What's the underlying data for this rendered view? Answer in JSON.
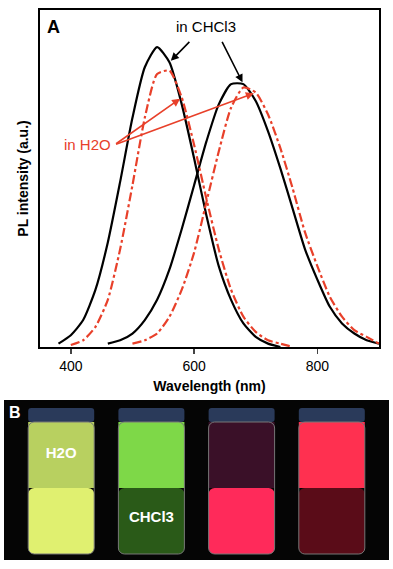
{
  "chart_data": {
    "type": "line",
    "panel_label": "A",
    "xlabel": "Wavelength (nm)",
    "ylabel": "PL intensity (a.u.)",
    "xlim": [
      350,
      900
    ],
    "xticks": [
      400,
      600,
      800
    ],
    "ylim": [
      0,
      1
    ],
    "tick_labels": "x",
    "annotations": [
      {
        "text": "in CHCl3",
        "color": "#000000"
      },
      {
        "text": "in H2O",
        "color": "#e8402a"
      }
    ],
    "series": [
      {
        "color": "#000000",
        "line_style": "solid",
        "x": [
          380,
          400,
          420,
          440,
          460,
          480,
          500,
          520,
          540,
          560,
          580,
          600,
          620,
          640,
          660,
          680,
          700,
          720,
          740
        ],
        "values": [
          0.01,
          0.035,
          0.08,
          0.17,
          0.31,
          0.49,
          0.68,
          0.83,
          0.89,
          0.845,
          0.72,
          0.56,
          0.39,
          0.24,
          0.14,
          0.07,
          0.03,
          0.01,
          0
        ]
      },
      {
        "color": "#000000",
        "line_style": "solid",
        "x": [
          460,
          480,
          500,
          520,
          540,
          560,
          580,
          600,
          620,
          640,
          660,
          680,
          700,
          720,
          740,
          760,
          780,
          800,
          820,
          840,
          860,
          880,
          900
        ],
        "values": [
          0.01,
          0.02,
          0.04,
          0.08,
          0.14,
          0.23,
          0.35,
          0.48,
          0.61,
          0.72,
          0.78,
          0.78,
          0.73,
          0.64,
          0.53,
          0.41,
          0.29,
          0.2,
          0.12,
          0.07,
          0.04,
          0.02,
          0.01
        ]
      },
      {
        "color": "#e8402a",
        "line_style": "dashdot",
        "x": [
          400,
          420,
          440,
          460,
          480,
          500,
          520,
          540,
          560,
          580,
          600,
          620,
          640,
          660,
          680,
          700,
          720,
          740,
          760
        ],
        "values": [
          0.006,
          0.02,
          0.06,
          0.14,
          0.29,
          0.48,
          0.68,
          0.81,
          0.82,
          0.74,
          0.6,
          0.44,
          0.29,
          0.17,
          0.09,
          0.045,
          0.02,
          0.01,
          0
        ]
      },
      {
        "color": "#e8402a",
        "line_style": "dashdot",
        "x": [
          500,
          520,
          540,
          560,
          580,
          600,
          620,
          640,
          660,
          680,
          700,
          720,
          740,
          760,
          780,
          800,
          820,
          840,
          860,
          880,
          900
        ],
        "values": [
          0.01,
          0.02,
          0.04,
          0.09,
          0.17,
          0.28,
          0.43,
          0.58,
          0.71,
          0.77,
          0.755,
          0.69,
          0.59,
          0.47,
          0.34,
          0.24,
          0.15,
          0.09,
          0.05,
          0.03,
          0.01
        ]
      }
    ]
  },
  "photo": {
    "panel_label": "B",
    "labels": [
      "H2O",
      "CHCl3"
    ]
  }
}
